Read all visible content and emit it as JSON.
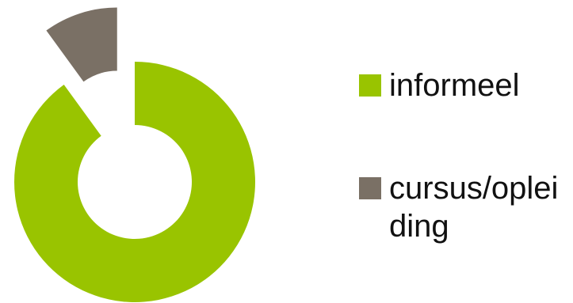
{
  "chart_data": {
    "type": "pie",
    "variant": "exploded-donut",
    "categories": [
      "informeel",
      "cursus/opleiding"
    ],
    "values": [
      90,
      10
    ],
    "colors": [
      "#99c400",
      "#7a7065"
    ],
    "legend_position": "right",
    "legend_labels": [
      "informeel",
      "cursus/opl​eiding"
    ]
  }
}
